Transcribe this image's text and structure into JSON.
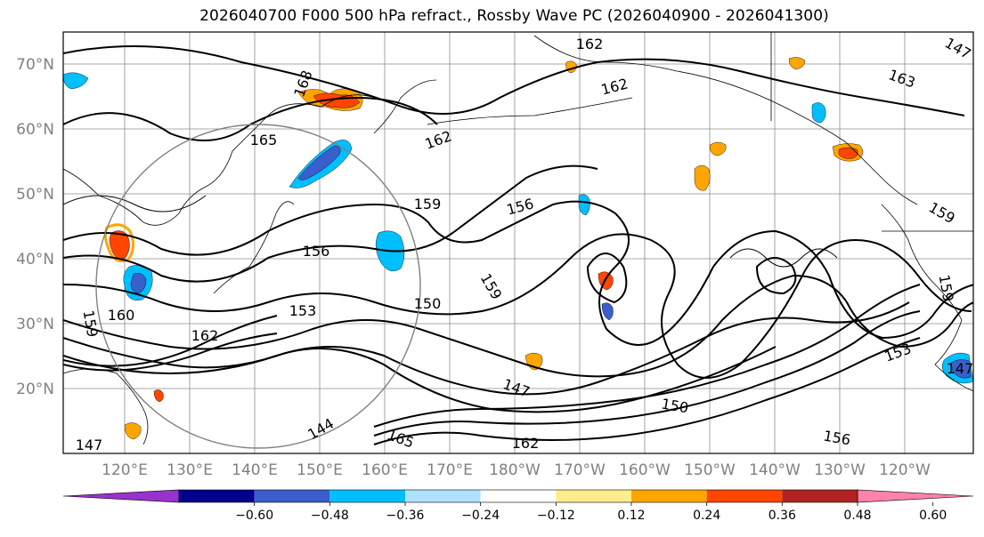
{
  "title": "2026040700 F000 500 hPa refract., Rossby Wave PC (2026040900 - 2026041300)",
  "lat_labels": [
    "70°N",
    "60°N",
    "50°N",
    "40°N",
    "30°N",
    "20°N"
  ],
  "lon_labels": [
    "120°E",
    "130°E",
    "140°E",
    "150°E",
    "160°E",
    "170°E",
    "180°W",
    "170°W",
    "160°W",
    "150°W",
    "140°W",
    "130°W",
    "120°W"
  ],
  "contour_labels": [
    "162",
    "165",
    "168",
    "162",
    "159",
    "156",
    "159",
    "150",
    "153",
    "156",
    "159",
    "162",
    "147",
    "144",
    "165",
    "162",
    "150",
    "147",
    "153",
    "159",
    "147",
    "147",
    "163",
    "162",
    "160",
    "159",
    "156"
  ],
  "colorbar": {
    "colors": [
      "#9932cc",
      "#00008b",
      "#3a5fcd",
      "#00bfff",
      "#b0e2ff",
      "#ffffff",
      "#ffec8b",
      "#ffa500",
      "#ff4500",
      "#b22222",
      "#ff82ab"
    ],
    "ticks": [
      "−0.60",
      "−0.48",
      "−0.36",
      "−0.24",
      "−0.12",
      "0.12",
      "0.24",
      "0.36",
      "0.48",
      "0.60"
    ]
  }
}
